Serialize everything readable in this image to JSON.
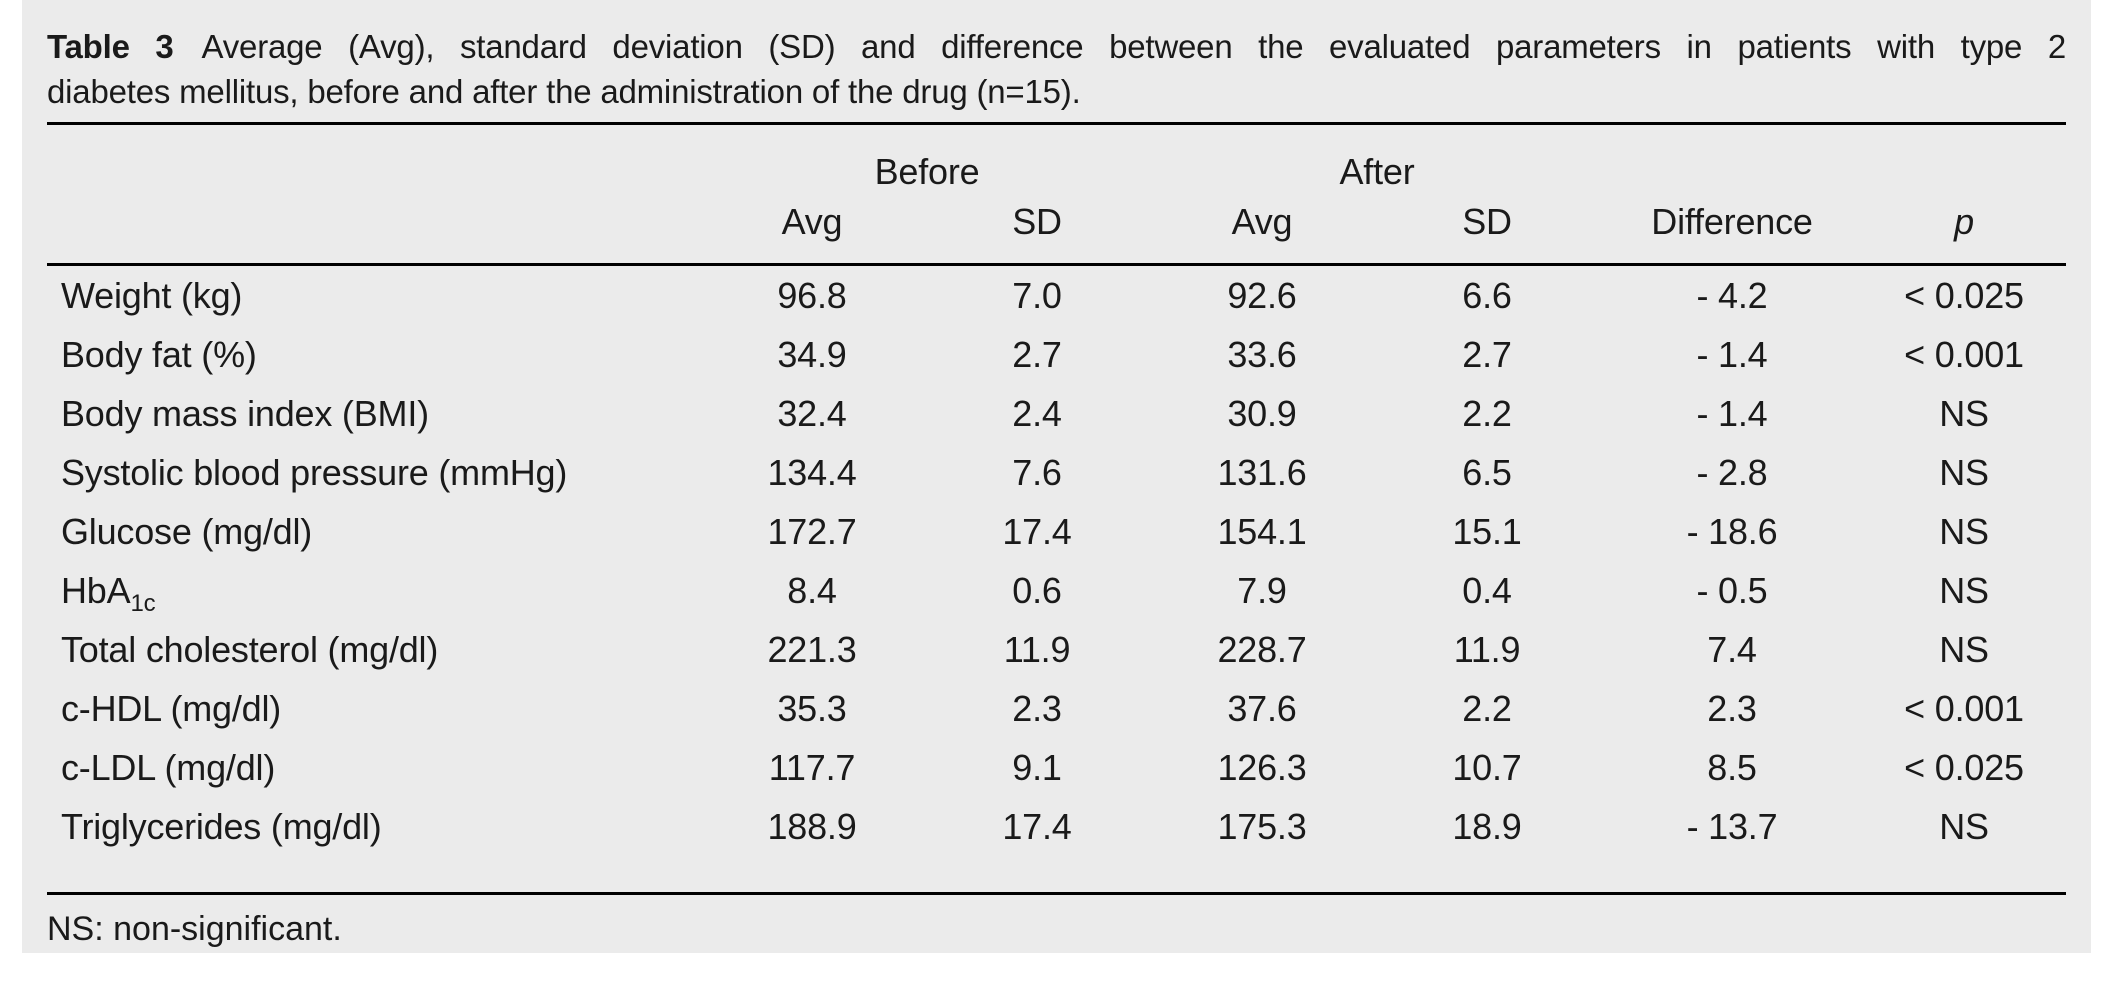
{
  "caption": {
    "label": "Table 3",
    "line1": "Average (Avg), standard deviation (SD) and difference between the evaluated parameters in patients with type 2",
    "line2": "diabetes mellitus, before and after the administration of the drug (n=15)."
  },
  "table": {
    "group_headers": {
      "before": "Before",
      "after": "After"
    },
    "columns": {
      "parameter": "",
      "before_avg": "Avg",
      "before_sd": "SD",
      "after_avg": "Avg",
      "after_sd": "SD",
      "difference": "Difference",
      "p": "p"
    },
    "rows": [
      {
        "parameter": "Weight (kg)",
        "values": [
          "96.8",
          "7.0",
          "92.6",
          "6.6",
          "- 4.2",
          "< 0.025"
        ]
      },
      {
        "parameter": "Body fat (%)",
        "values": [
          "34.9",
          "2.7",
          "33.6",
          "2.7",
          "- 1.4",
          "< 0.001"
        ]
      },
      {
        "parameter": "Body mass index (BMI)",
        "values": [
          "32.4",
          "2.4",
          "30.9",
          "2.2",
          "- 1.4",
          "NS"
        ]
      },
      {
        "parameter": "Systolic blood pressure (mmHg)",
        "values": [
          "134.4",
          "7.6",
          "131.6",
          "6.5",
          "- 2.8",
          "NS"
        ]
      },
      {
        "parameter": "Glucose (mg/dl)",
        "values": [
          "172.7",
          "17.4",
          "154.1",
          "15.1",
          "- 18.6",
          "NS"
        ]
      },
      {
        "parameter": "HbA",
        "parameter_sub": "1c",
        "values": [
          "8.4",
          "0.6",
          "7.9",
          "0.4",
          "- 0.5",
          "NS"
        ]
      },
      {
        "parameter": "Total cholesterol (mg/dl)",
        "values": [
          "221.3",
          "11.9",
          "228.7",
          "11.9",
          "7.4",
          "NS"
        ]
      },
      {
        "parameter": "c-HDL (mg/dl)",
        "values": [
          "35.3",
          "2.3",
          "37.6",
          "2.2",
          "2.3",
          "< 0.001"
        ]
      },
      {
        "parameter": "c-LDL (mg/dl)",
        "values": [
          "117.7",
          "9.1",
          "126.3",
          "10.7",
          "8.5",
          "< 0.025"
        ]
      },
      {
        "parameter": "Triglycerides (mg/dl)",
        "values": [
          "188.9",
          "17.4",
          "175.3",
          "18.9",
          "- 13.7",
          "NS"
        ]
      }
    ]
  },
  "footnote": "NS: non-significant."
}
